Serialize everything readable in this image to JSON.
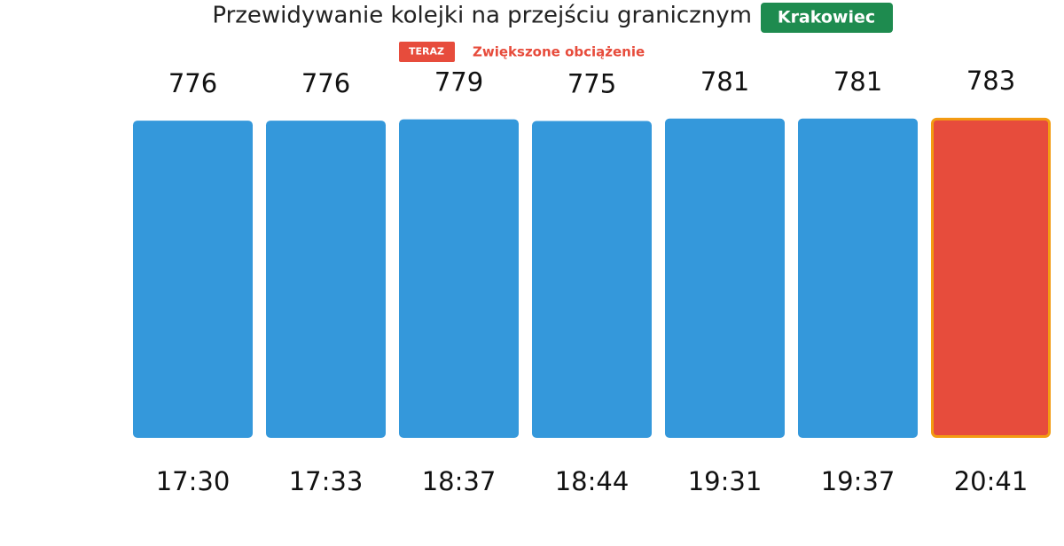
{
  "chart_data": {
    "type": "bar",
    "title": "Przewidywanie kolejki na przejściu granicznym",
    "badge": "Krakowiec",
    "now_badge": "TERAZ",
    "status": "Zwiększone obciążenie",
    "categories": [
      "17:30",
      "17:33",
      "18:37",
      "18:44",
      "19:31",
      "19:37",
      "20:41"
    ],
    "values": [
      776,
      776,
      779,
      775,
      781,
      781,
      783
    ],
    "colors": [
      "#3498db",
      "#3498db",
      "#3498db",
      "#3498db",
      "#3498db",
      "#3498db",
      "#e74c3c"
    ],
    "border_colors": [
      null,
      null,
      null,
      null,
      null,
      null,
      "#f39c12"
    ],
    "ylim": [
      0,
      800
    ]
  }
}
